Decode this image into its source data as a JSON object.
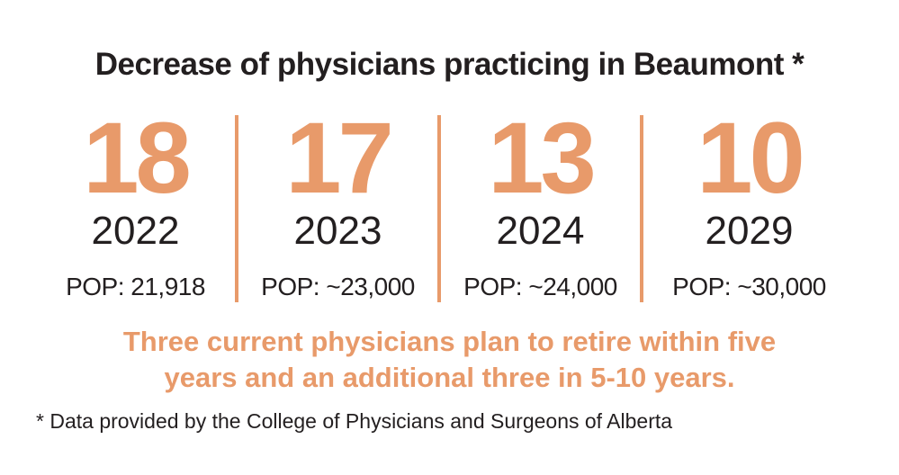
{
  "title": "Decrease of physicians practicing in Beaumont *",
  "stats": [
    {
      "value": 18,
      "year": "2022",
      "population": "POP: 21,918"
    },
    {
      "value": 17,
      "year": "2023",
      "population": "POP: ~23,000"
    },
    {
      "value": 13,
      "year": "2024",
      "population": "POP: ~24,000"
    },
    {
      "value": 10,
      "year": "2029",
      "population": "POP: ~30,000"
    }
  ],
  "highlight": [
    "Three current physicians plan to retire within five",
    "years and an additional three in 5-10 years."
  ],
  "footnote": "* Data provided by the College of Physicians and Surgeons of Alberta"
}
